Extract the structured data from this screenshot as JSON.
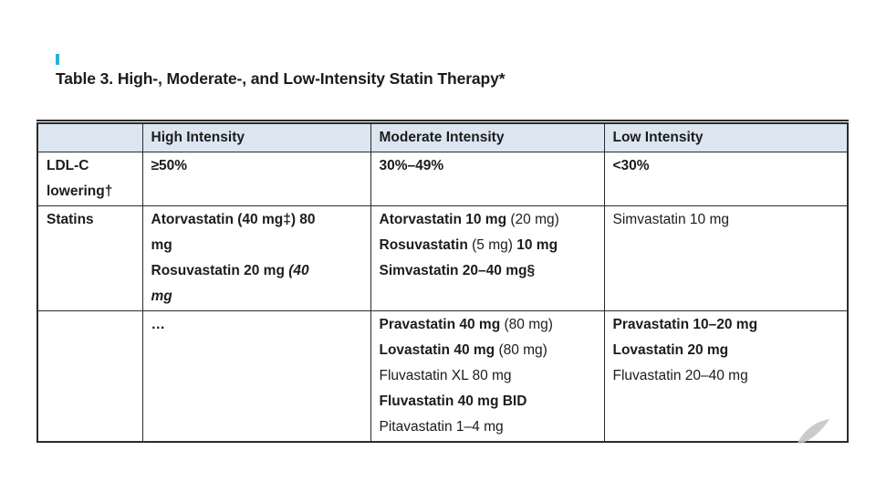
{
  "title": "Table 3. High-, Moderate-, and Low-Intensity Statin Therapy*",
  "colors": {
    "header_bg": "#dce6f1",
    "border": "#2b2b2b",
    "text": "#1c1c1c",
    "cursor_mark": "#2ab3d6",
    "watermark": "#c2c2c2"
  },
  "table": {
    "columns": [
      "",
      "High Intensity",
      "Moderate Intensity",
      "Low Intensity"
    ],
    "rows": [
      {
        "cells": [
          {
            "lines": [
              [
                {
                  "t": "LDL-C",
                  "b": true
                }
              ],
              [
                {
                  "t": "lowering†",
                  "b": true
                }
              ]
            ]
          },
          {
            "lines": [
              [
                {
                  "t": "≥50%",
                  "b": true
                }
              ]
            ]
          },
          {
            "lines": [
              [
                {
                  "t": "30%–49%",
                  "b": true
                }
              ]
            ]
          },
          {
            "lines": [
              [
                {
                  "t": "<30%",
                  "b": true
                }
              ]
            ]
          }
        ]
      },
      {
        "cells": [
          {
            "lines": [
              [
                {
                  "t": "Statins",
                  "b": true
                }
              ]
            ]
          },
          {
            "lines": [
              [
                {
                  "t": "Atorvastatin (40 mg‡) 80",
                  "b": true
                }
              ],
              [
                {
                  "t": "mg",
                  "b": true
                }
              ],
              [
                {
                  "t": "Rosuvastatin 20 mg ",
                  "b": true
                },
                {
                  "t": "(40",
                  "b": true,
                  "i": true
                }
              ],
              [
                {
                  "t": "mg",
                  "b": true,
                  "i": true
                }
              ]
            ]
          },
          {
            "lines": [
              [
                {
                  "t": "Atorvastatin 10 mg ",
                  "b": true
                },
                {
                  "t": "(20 mg)",
                  "b": false
                }
              ],
              [
                {
                  "t": "Rosuvastatin ",
                  "b": true
                },
                {
                  "t": "(5 mg)",
                  "b": false
                },
                {
                  "t": " 10 mg",
                  "b": true
                }
              ],
              [
                {
                  "t": "Simvastatin 20–40 mg§",
                  "b": true
                }
              ]
            ]
          },
          {
            "lines": [
              [
                {
                  "t": "Simvastatin 10 mg",
                  "b": false
                }
              ]
            ]
          }
        ]
      },
      {
        "cells": [
          {
            "lines": []
          },
          {
            "lines": [
              [
                {
                  "t": "…",
                  "b": true
                }
              ]
            ]
          },
          {
            "lines": [
              [
                {
                  "t": "Pravastatin 40 mg ",
                  "b": true
                },
                {
                  "t": "(80 mg)",
                  "b": false
                }
              ],
              [
                {
                  "t": "Lovastatin 40 mg ",
                  "b": true
                },
                {
                  "t": "(80 mg)",
                  "b": false
                }
              ],
              [
                {
                  "t": "Fluvastatin XL 80 mg",
                  "b": false
                }
              ],
              [
                {
                  "t": "Fluvastatin 40 mg BID",
                  "b": true
                }
              ],
              [
                {
                  "t": "Pitavastatin 1–4 mg",
                  "b": false
                }
              ]
            ]
          },
          {
            "lines": [
              [
                {
                  "t": "Pravastatin 10–20 mg",
                  "b": true
                }
              ],
              [
                {
                  "t": "Lovastatin 20 mg",
                  "b": true
                }
              ],
              [
                {
                  "t": "Fluvastatin 20–40 mg",
                  "b": false
                }
              ]
            ]
          }
        ]
      }
    ]
  }
}
